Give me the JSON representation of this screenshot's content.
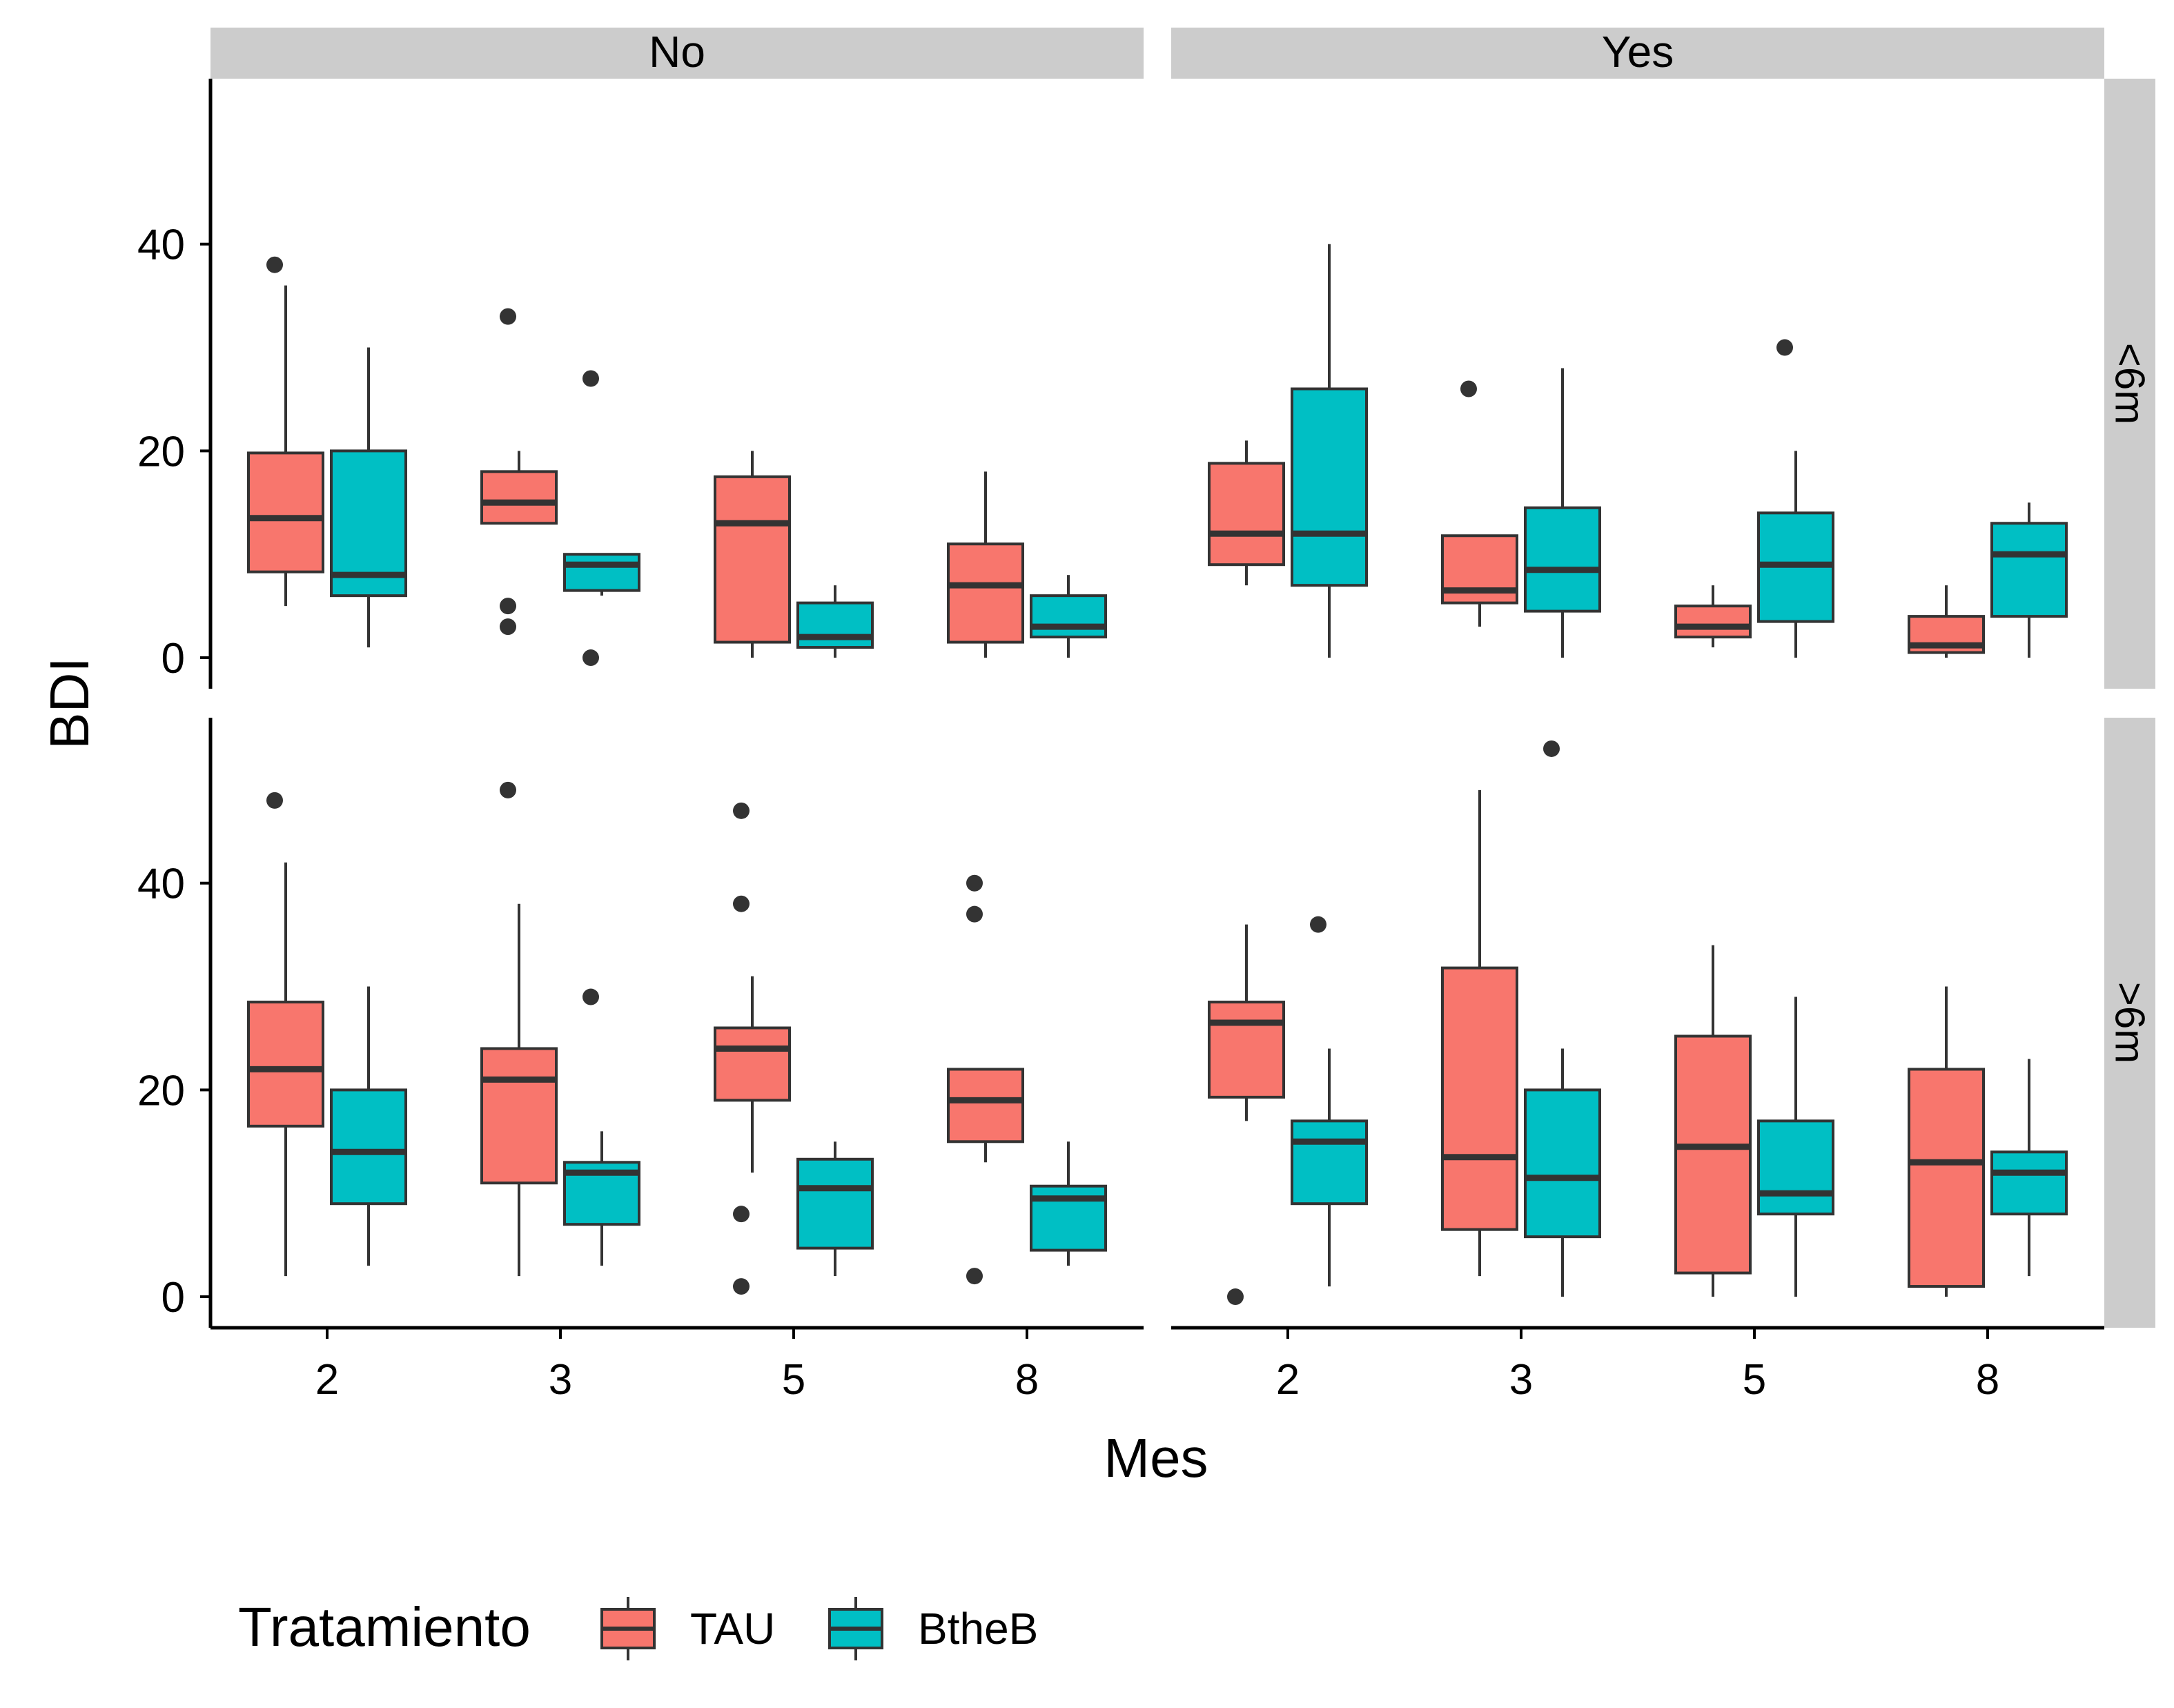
{
  "chart_data": {
    "type": "boxplot",
    "xlabel": "Mes",
    "ylabel": "BDI",
    "x_categories": [
      "2",
      "3",
      "5",
      "8"
    ],
    "y_ticks": [
      0,
      20,
      40
    ],
    "ylim": [
      -3,
      56
    ],
    "col_facet_labels": [
      "No",
      "Yes"
    ],
    "row_facet_labels": [
      "<6m",
      ">6m"
    ],
    "legend": {
      "title": "Tratamiento",
      "position": "bottom-left",
      "entries": [
        {
          "name": "TAU",
          "color": "#F8766D"
        },
        {
          "name": "BtheB",
          "color": "#00BFC4"
        }
      ]
    },
    "grid": false,
    "panels": [
      {
        "col": "No",
        "row": "<6m",
        "groups": [
          {
            "x": "2",
            "series": "TAU",
            "low": 5,
            "q1": 8.3,
            "median": 13.5,
            "q3": 19.8,
            "high": 36,
            "outliers": [
              38
            ]
          },
          {
            "x": "2",
            "series": "BtheB",
            "low": 1,
            "q1": 6,
            "median": 8,
            "q3": 20,
            "high": 30,
            "outliers": []
          },
          {
            "x": "3",
            "series": "TAU",
            "low": 13,
            "q1": 13,
            "median": 15,
            "q3": 18,
            "high": 20,
            "outliers": [
              33,
              5,
              3
            ]
          },
          {
            "x": "3",
            "series": "BtheB",
            "low": 6,
            "q1": 6.5,
            "median": 9,
            "q3": 10,
            "high": 10,
            "outliers": [
              27,
              0
            ]
          },
          {
            "x": "5",
            "series": "TAU",
            "low": 0,
            "q1": 1.5,
            "median": 13,
            "q3": 17.5,
            "high": 20,
            "outliers": []
          },
          {
            "x": "5",
            "series": "BtheB",
            "low": 0,
            "q1": 1,
            "median": 2,
            "q3": 5.3,
            "high": 7,
            "outliers": []
          },
          {
            "x": "8",
            "series": "TAU",
            "low": 0,
            "q1": 1.5,
            "median": 7,
            "q3": 11,
            "high": 18,
            "outliers": []
          },
          {
            "x": "8",
            "series": "BtheB",
            "low": 0,
            "q1": 2,
            "median": 3,
            "q3": 6,
            "high": 8,
            "outliers": []
          }
        ]
      },
      {
        "col": "Yes",
        "row": "<6m",
        "groups": [
          {
            "x": "2",
            "series": "TAU",
            "low": 7,
            "q1": 9,
            "median": 12,
            "q3": 18.8,
            "high": 21,
            "outliers": []
          },
          {
            "x": "2",
            "series": "BtheB",
            "low": 0,
            "q1": 7,
            "median": 12,
            "q3": 26,
            "high": 40,
            "outliers": []
          },
          {
            "x": "3",
            "series": "TAU",
            "low": 3,
            "q1": 5.3,
            "median": 6.5,
            "q3": 11.8,
            "high": 11.8,
            "outliers": [
              26
            ]
          },
          {
            "x": "3",
            "series": "BtheB",
            "low": 0,
            "q1": 4.5,
            "median": 8.5,
            "q3": 14.5,
            "high": 28,
            "outliers": []
          },
          {
            "x": "5",
            "series": "TAU",
            "low": 1,
            "q1": 2,
            "median": 3,
            "q3": 5,
            "high": 7,
            "outliers": []
          },
          {
            "x": "5",
            "series": "BtheB",
            "low": 0,
            "q1": 3.5,
            "median": 9,
            "q3": 14,
            "high": 20,
            "outliers": [
              30
            ]
          },
          {
            "x": "8",
            "series": "TAU",
            "low": 0,
            "q1": 0.5,
            "median": 1.2,
            "q3": 4,
            "high": 7,
            "outliers": []
          },
          {
            "x": "8",
            "series": "BtheB",
            "low": 0,
            "q1": 4,
            "median": 10,
            "q3": 13,
            "high": 15,
            "outliers": []
          }
        ]
      },
      {
        "col": "No",
        "row": ">6m",
        "groups": [
          {
            "x": "2",
            "series": "TAU",
            "low": 2,
            "q1": 16.5,
            "median": 22,
            "q3": 28.5,
            "high": 42,
            "outliers": [
              48
            ]
          },
          {
            "x": "2",
            "series": "BtheB",
            "low": 3,
            "q1": 9,
            "median": 14,
            "q3": 20,
            "high": 30,
            "outliers": []
          },
          {
            "x": "3",
            "series": "TAU",
            "low": 2,
            "q1": 11,
            "median": 21,
            "q3": 24,
            "high": 38,
            "outliers": [
              49
            ]
          },
          {
            "x": "3",
            "series": "BtheB",
            "low": 3,
            "q1": 7,
            "median": 12,
            "q3": 13,
            "high": 16,
            "outliers": [
              29
            ]
          },
          {
            "x": "5",
            "series": "TAU",
            "low": 12,
            "q1": 19,
            "median": 24,
            "q3": 26,
            "high": 31,
            "outliers": [
              47,
              38,
              8,
              1
            ]
          },
          {
            "x": "5",
            "series": "BtheB",
            "low": 2,
            "q1": 4.7,
            "median": 10.5,
            "q3": 13.3,
            "high": 15,
            "outliers": []
          },
          {
            "x": "8",
            "series": "TAU",
            "low": 13,
            "q1": 15,
            "median": 19,
            "q3": 22,
            "high": 22,
            "outliers": [
              40,
              37,
              2
            ]
          },
          {
            "x": "8",
            "series": "BtheB",
            "low": 3,
            "q1": 4.5,
            "median": 9.5,
            "q3": 10.7,
            "high": 15,
            "outliers": []
          }
        ]
      },
      {
        "col": "Yes",
        "row": ">6m",
        "groups": [
          {
            "x": "2",
            "series": "TAU",
            "low": 17,
            "q1": 19.3,
            "median": 26.5,
            "q3": 28.5,
            "high": 36,
            "outliers": [
              0
            ]
          },
          {
            "x": "2",
            "series": "BtheB",
            "low": 1,
            "q1": 9,
            "median": 15,
            "q3": 17,
            "high": 24,
            "outliers": [
              36
            ]
          },
          {
            "x": "3",
            "series": "TAU",
            "low": 2,
            "q1": 6.5,
            "median": 13.5,
            "q3": 31.8,
            "high": 49,
            "outliers": []
          },
          {
            "x": "3",
            "series": "BtheB",
            "low": 0,
            "q1": 5.8,
            "median": 11.5,
            "q3": 20,
            "high": 24,
            "outliers": [
              53
            ]
          },
          {
            "x": "5",
            "series": "TAU",
            "low": 0,
            "q1": 2.3,
            "median": 14.5,
            "q3": 25.2,
            "high": 34,
            "outliers": []
          },
          {
            "x": "5",
            "series": "BtheB",
            "low": 0,
            "q1": 8,
            "median": 10,
            "q3": 17,
            "high": 29,
            "outliers": []
          },
          {
            "x": "8",
            "series": "TAU",
            "low": 0,
            "q1": 1,
            "median": 13,
            "q3": 22,
            "high": 30,
            "outliers": []
          },
          {
            "x": "8",
            "series": "BtheB",
            "low": 2,
            "q1": 8,
            "median": 12,
            "q3": 14,
            "high": 23,
            "outliers": []
          }
        ]
      }
    ]
  }
}
